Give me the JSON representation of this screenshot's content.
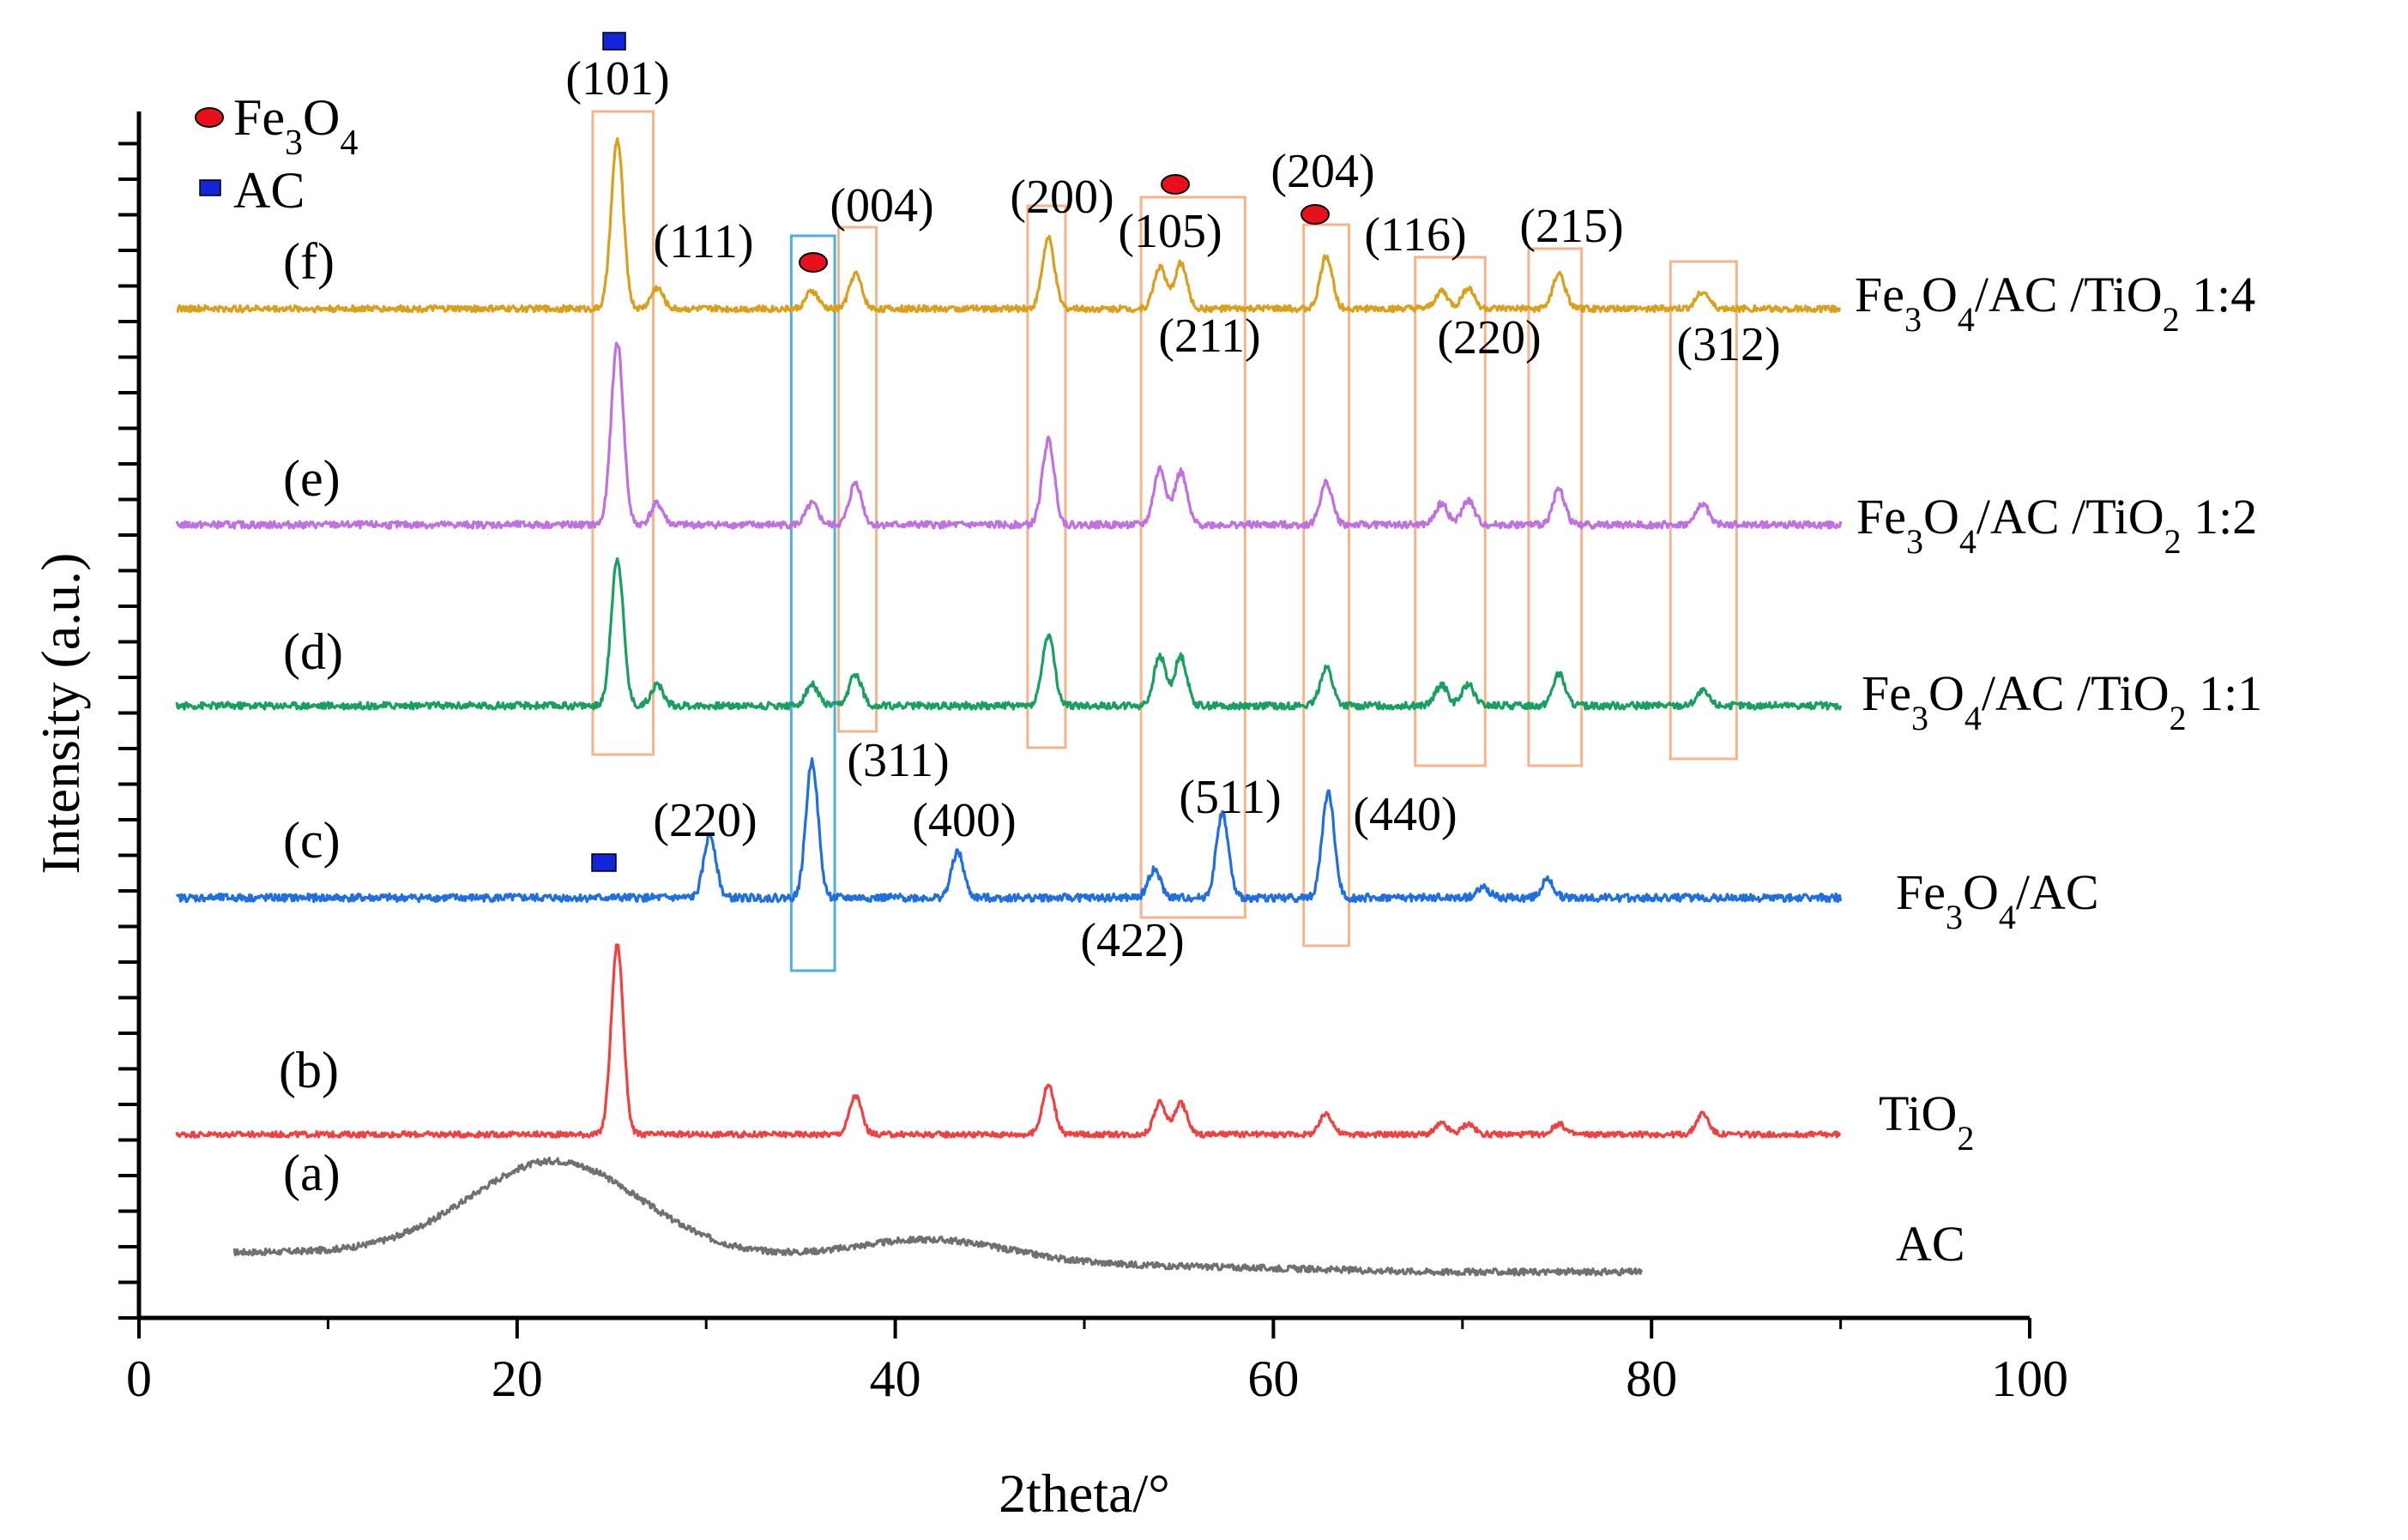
{
  "chart_data": {
    "type": "line",
    "title": "",
    "xlabel": "2theta/°",
    "ylabel": "Intensity (a.u.)",
    "xlim": [
      0,
      100
    ],
    "x_ticks": [
      "0",
      "20",
      "40",
      "60",
      "80",
      "100"
    ],
    "legend": [
      {
        "label": "Fe3O4",
        "marker": "red-ellipse",
        "color": "#e8101a"
      },
      {
        "label": "AC",
        "marker": "blue-square",
        "color": "#1226d8"
      }
    ],
    "series": [
      {
        "tag": "(a)",
        "name": "AC",
        "color": "#707070",
        "x_range": [
          5,
          79.5
        ],
        "baseline": 0.3,
        "noise": 0.09,
        "broad_humps": [
          {
            "x": 22,
            "height": 1.3,
            "sigma": 4.5
          },
          {
            "x": 42,
            "height": 0.3,
            "sigma": 4.0
          }
        ],
        "decay_to": 0.0,
        "peaks": []
      },
      {
        "tag": "(b)",
        "name": "TiO2",
        "color": "#f04040",
        "x_range": [
          2,
          90
        ],
        "baseline": 0,
        "noise": 0.08,
        "peaks": [
          {
            "x": 25.3,
            "h": 2.7
          },
          {
            "x": 37.9,
            "h": 0.55
          },
          {
            "x": 48.1,
            "h": 0.7
          },
          {
            "x": 54.0,
            "h": 0.45
          },
          {
            "x": 55.1,
            "h": 0.45
          },
          {
            "x": 62.8,
            "h": 0.3
          },
          {
            "x": 68.9,
            "h": 0.15
          },
          {
            "x": 70.3,
            "h": 0.15
          },
          {
            "x": 75.1,
            "h": 0.15
          },
          {
            "x": 82.7,
            "h": 0.3
          }
        ]
      },
      {
        "tag": "(c)",
        "name": "Fe3O4/AC",
        "color": "#1f6fe0",
        "x_range": [
          2,
          90
        ],
        "baseline": 0,
        "noise": 0.11,
        "peaks": [
          {
            "x": 30.2,
            "h": 0.9
          },
          {
            "x": 35.6,
            "h": 1.95
          },
          {
            "x": 43.3,
            "h": 0.65
          },
          {
            "x": 53.7,
            "h": 0.4
          },
          {
            "x": 57.3,
            "h": 1.2
          },
          {
            "x": 62.9,
            "h": 1.5
          },
          {
            "x": 71.1,
            "h": 0.15
          },
          {
            "x": 74.5,
            "h": 0.25
          }
        ],
        "markers": [
          {
            "type": "AC",
            "x": 24.7,
            "y_offset": 0.55
          }
        ]
      },
      {
        "tag": "(d)",
        "name": "Fe3O4/AC /TiO2 1:1",
        "color": "#18a060",
        "x_range": [
          2,
          90
        ],
        "baseline": 0,
        "noise": 0.1,
        "peaks": [
          {
            "x": 25.3,
            "h": 2.1
          },
          {
            "x": 27.4,
            "h": 0.3
          },
          {
            "x": 35.6,
            "h": 0.3
          },
          {
            "x": 37.9,
            "h": 0.45
          },
          {
            "x": 48.1,
            "h": 1.0
          },
          {
            "x": 54.0,
            "h": 0.7
          },
          {
            "x": 55.1,
            "h": 0.7
          },
          {
            "x": 62.8,
            "h": 0.55
          },
          {
            "x": 68.9,
            "h": 0.3
          },
          {
            "x": 70.3,
            "h": 0.3
          },
          {
            "x": 75.1,
            "h": 0.45
          },
          {
            "x": 82.7,
            "h": 0.2
          }
        ]
      },
      {
        "tag": "(e)",
        "name": "Fe3O4/AC /TiO2 1:2",
        "color": "#c070e0",
        "x_range": [
          2,
          90
        ],
        "baseline": 0,
        "noise": 0.1,
        "peaks": [
          {
            "x": 25.3,
            "h": 2.6
          },
          {
            "x": 27.4,
            "h": 0.3
          },
          {
            "x": 35.6,
            "h": 0.3
          },
          {
            "x": 37.9,
            "h": 0.6
          },
          {
            "x": 48.1,
            "h": 1.2
          },
          {
            "x": 54.0,
            "h": 0.8
          },
          {
            "x": 55.1,
            "h": 0.75
          },
          {
            "x": 62.8,
            "h": 0.6
          },
          {
            "x": 68.9,
            "h": 0.3
          },
          {
            "x": 70.3,
            "h": 0.35
          },
          {
            "x": 75.1,
            "h": 0.5
          },
          {
            "x": 82.7,
            "h": 0.3
          }
        ]
      },
      {
        "tag": "(f)",
        "name": "Fe3O4/AC /TiO2 1:4",
        "color": "#dba01a",
        "x_range": [
          2,
          90
        ],
        "baseline": 0,
        "noise": 0.09,
        "peaks": [
          {
            "x": 25.3,
            "h": 2.4
          },
          {
            "x": 27.4,
            "h": 0.3
          },
          {
            "x": 35.6,
            "h": 0.25
          },
          {
            "x": 37.9,
            "h": 0.5
          },
          {
            "x": 48.1,
            "h": 1.0
          },
          {
            "x": 54.0,
            "h": 0.6
          },
          {
            "x": 55.1,
            "h": 0.65
          },
          {
            "x": 62.8,
            "h": 0.75
          },
          {
            "x": 68.9,
            "h": 0.25
          },
          {
            "x": 70.3,
            "h": 0.3
          },
          {
            "x": 75.1,
            "h": 0.5
          },
          {
            "x": 82.7,
            "h": 0.25
          }
        ]
      }
    ],
    "annotations": {
      "miller_indices": [
        {
          "text": "(101)",
          "near_x": 25.3,
          "series": "(f)"
        },
        {
          "text": "(111)",
          "near_x": 30.5,
          "series": "(f)"
        },
        {
          "text": "(004)",
          "near_x": 39.5,
          "series": "(f)"
        },
        {
          "text": "(200)",
          "near_x": 48.0,
          "series": "(f)"
        },
        {
          "text": "(105)",
          "near_x": 54.3,
          "series": "(f)"
        },
        {
          "text": "(204)",
          "near_x": 63.5,
          "series": "(f)"
        },
        {
          "text": "(116)",
          "near_x": 68.0,
          "series": "(f)"
        },
        {
          "text": "(215)",
          "near_x": 75.0,
          "series": "(f)"
        },
        {
          "text": "(211)",
          "near_x": 56.0,
          "series": "(f)",
          "position": "below"
        },
        {
          "text": "(220)",
          "near_x": 71.5,
          "series": "(f)",
          "position": "below"
        },
        {
          "text": "(312)",
          "near_x": 83.5,
          "series": "(f)",
          "position": "below"
        },
        {
          "text": "(220)",
          "near_x": 30.2,
          "series": "(c)"
        },
        {
          "text": "(311)",
          "near_x": 39.5,
          "series": "(c)"
        },
        {
          "text": "(400)",
          "near_x": 43.5,
          "series": "(c)"
        },
        {
          "text": "(511)",
          "near_x": 57.5,
          "series": "(c)"
        },
        {
          "text": "(440)",
          "near_x": 66.5,
          "series": "(c)"
        },
        {
          "text": "(422)",
          "near_x": 52.5,
          "series": "(c)",
          "position": "below"
        }
      ],
      "highlight_boxes": [
        {
          "x_range": [
            24.0,
            27.2
          ],
          "color": "#f6b48a"
        },
        {
          "x_range": [
            34.5,
            36.8
          ],
          "color": "#4ab0e0"
        },
        {
          "x_range": [
            37.0,
            39.0
          ],
          "color": "#f6b48a"
        },
        {
          "x_range": [
            47.0,
            49.0
          ],
          "color": "#f6b48a"
        },
        {
          "x_range": [
            53.0,
            58.5
          ],
          "color": "#f6b48a"
        },
        {
          "x_range": [
            61.6,
            64.0
          ],
          "color": "#f6b48a"
        },
        {
          "x_range": [
            67.5,
            71.2
          ],
          "color": "#f6b48a"
        },
        {
          "x_range": [
            73.5,
            76.3
          ],
          "color": "#f6b48a"
        },
        {
          "x_range": [
            81.0,
            84.5
          ],
          "color": "#f6b48a"
        }
      ]
    }
  }
}
